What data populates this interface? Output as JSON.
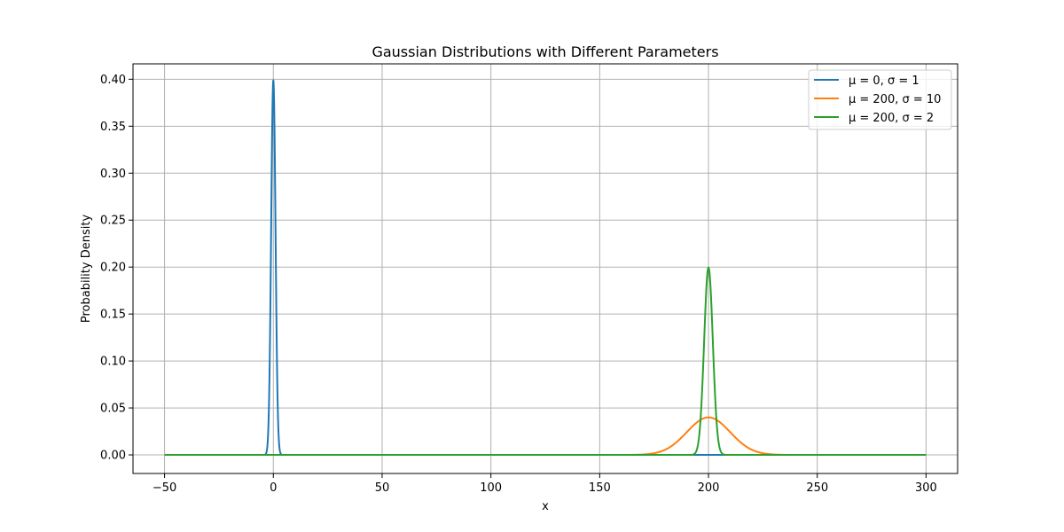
{
  "chart_data": {
    "type": "line",
    "title": "Gaussian Distributions with Different Parameters",
    "xlabel": "x",
    "ylabel": "Probability Density",
    "xlim": [
      -64.5,
      314.5
    ],
    "ylim": [
      -0.0198,
      0.4164
    ],
    "xticks": [
      -50,
      0,
      50,
      100,
      150,
      200,
      250,
      300
    ],
    "xtick_labels": [
      "−50",
      "0",
      "50",
      "100",
      "150",
      "200",
      "250",
      "300"
    ],
    "yticks": [
      0.0,
      0.05,
      0.1,
      0.15,
      0.2,
      0.25,
      0.3,
      0.35,
      0.4
    ],
    "ytick_labels": [
      "0.00",
      "0.05",
      "0.10",
      "0.15",
      "0.20",
      "0.25",
      "0.30",
      "0.35",
      "0.40"
    ],
    "grid": true,
    "legend_position": "top-right",
    "x_range": [
      -50,
      300
    ],
    "series": [
      {
        "name": "μ = 0, σ = 1",
        "mu": 0,
        "sigma": 1,
        "color": "#1f77b4"
      },
      {
        "name": "μ = 200, σ = 10",
        "mu": 200,
        "sigma": 10,
        "color": "#ff7f0e"
      },
      {
        "name": "μ = 200, σ = 2",
        "mu": 200,
        "sigma": 2,
        "color": "#2ca02c"
      }
    ]
  }
}
